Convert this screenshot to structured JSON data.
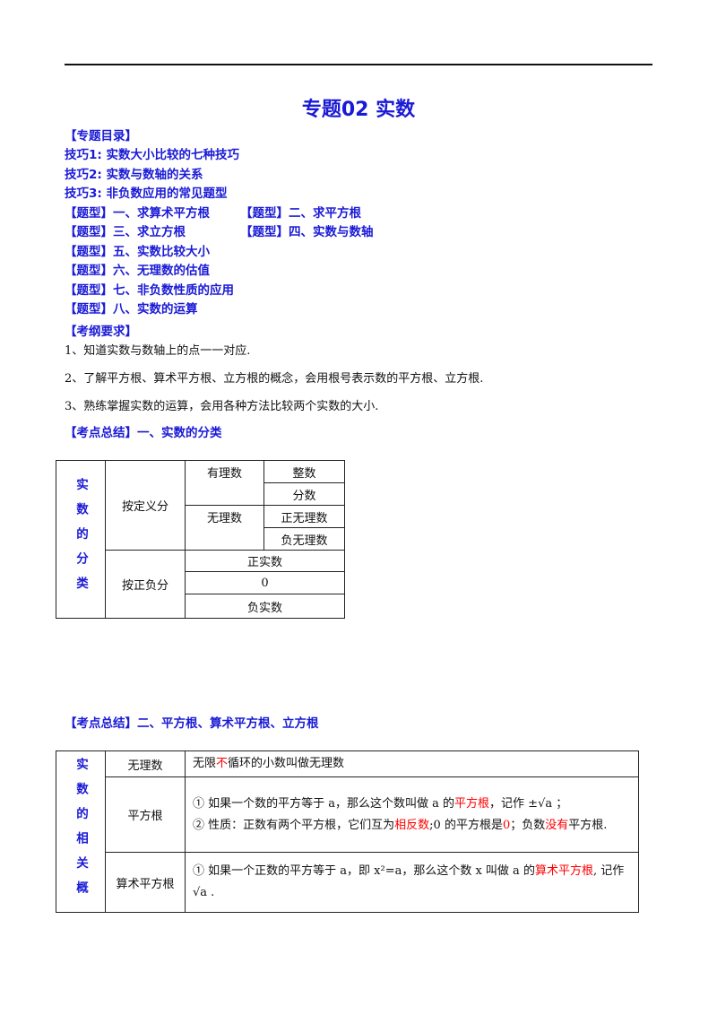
{
  "title": "专题02  实数",
  "toc": {
    "heading": "【专题目录】",
    "skills": [
      "技巧1:  实数大小比较的七种技巧",
      "技巧2:  实数与数轴的关系",
      "技巧3:  非负数应用的常见题型"
    ],
    "types": [
      "【题型】一、求算术平方根",
      "【题型】二、求平方根",
      "【题型】三、求立方根",
      "【题型】四、实数与数轴",
      "【题型】五、实数比较大小",
      "【题型】六、无理数的估值",
      "【题型】七、非负数性质的应用",
      "【题型】八、实数的运算"
    ]
  },
  "requirements": {
    "heading": "【考纲要求】",
    "items": [
      "1、知道实数与数轴上的点一一对应.",
      "2、了解平方根、算术平方根、立方根的概念，会用根号表示数的平方根、立方根.",
      "3、熟练掌握实数的运算，会用各种方法比较两个实数的大小."
    ]
  },
  "classification": {
    "heading": "【考点总结】一、实数的分类",
    "side_label": "实数的分类",
    "by_definition": {
      "label": "按定义分",
      "rational": {
        "label": "有理数",
        "items": [
          "整数",
          "分数"
        ]
      },
      "irrational": {
        "label": "无理数",
        "items": [
          "正无理数",
          "负无理数"
        ]
      }
    },
    "by_sign": {
      "label": "按正负分",
      "items": [
        "正实数",
        "0",
        "负实数"
      ]
    }
  },
  "concepts": {
    "heading": "【考点总结】二、平方根、算术平方根、立方根",
    "side_label": "实数的相关概",
    "highlight_color": "#ff0000",
    "rows": [
      {
        "term": "无理数",
        "content": [
          [
            {
              "text": "无限"
            },
            {
              "text": "不",
              "highlight": true
            },
            {
              "text": "循环的小数叫做无理数"
            }
          ]
        ]
      },
      {
        "term": "平方根",
        "content": [
          [
            {
              "text": "①  如果一个数的平方等于 a，那么这个数叫做 a 的"
            },
            {
              "text": "平方根",
              "highlight": true
            },
            {
              "text": "，记作 ±√a ；"
            }
          ],
          [
            {
              "text": "②  性质：正数有两个平方根，它们互为"
            },
            {
              "text": "相反数",
              "highlight": true
            },
            {
              "text": ";0 的平方根是"
            },
            {
              "text": "0",
              "highlight": true
            },
            {
              "text": "；负数"
            },
            {
              "text": "没有",
              "highlight": true
            },
            {
              "text": "平方根."
            }
          ]
        ]
      },
      {
        "term": "算术平方根",
        "content": [
          [
            {
              "text": "①  如果一个正数的平方等于 a，即 x²=a，那么这个数 x 叫做 a 的"
            },
            {
              "text": "算术平方根",
              "highlight": true
            },
            {
              "text": ", 记作 √a ."
            }
          ]
        ]
      }
    ]
  }
}
